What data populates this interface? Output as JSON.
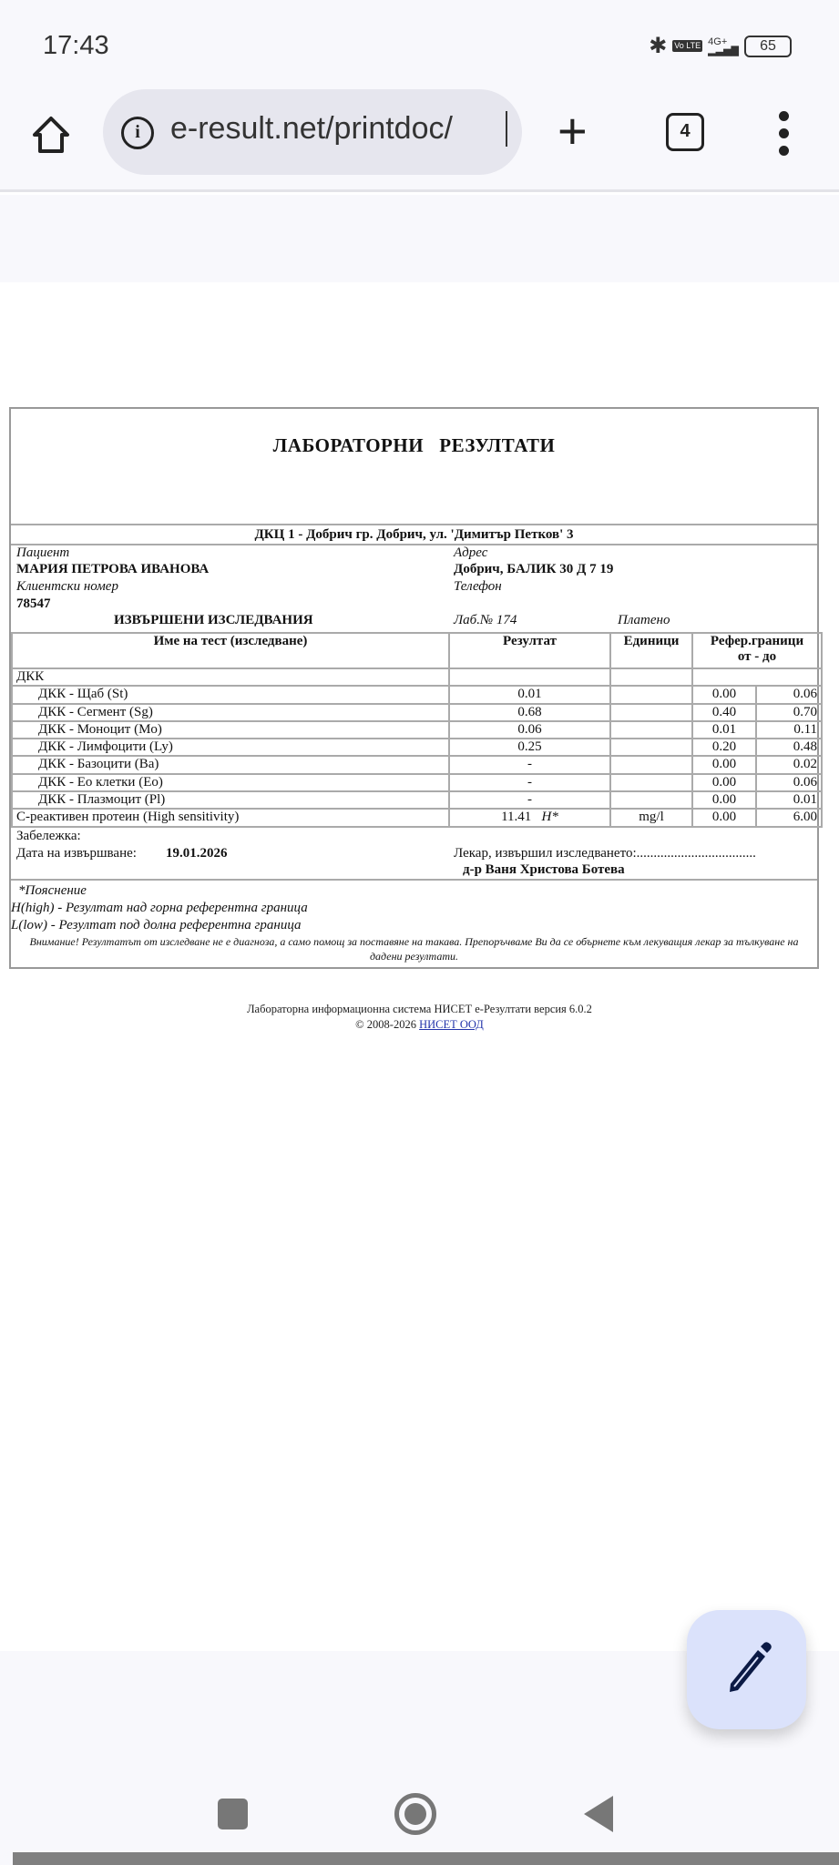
{
  "status_bar": {
    "time": "17:43",
    "network": "4G+",
    "volte": "Vo LTE",
    "battery": "65",
    "icons": [
      "bluetooth-icon",
      "volte-icon",
      "signal-icon",
      "battery-icon"
    ]
  },
  "browser": {
    "url": "e-result.net/printdoc/",
    "tab_count": "4",
    "icons": [
      "home-icon",
      "info-icon",
      "plus-icon",
      "tabs-icon",
      "menu-icon"
    ]
  },
  "document": {
    "title": "ЛАБОРАТОРНИ   РЕЗУЛТАТИ",
    "clinic": "ДКЦ 1 - Добрич гр. Добрич, ул. 'Димитър Петков' 3",
    "patient_label": "Пациент",
    "patient_name": "МАРИЯ ПЕТРОВА ИВАНОВА",
    "address_label": "Адрес",
    "address": "Добрич, БАЛИК 30 Д 7 19",
    "client_no_label": "Клиентски номер",
    "client_no": "78547",
    "phone_label": "Телефон",
    "tests_heading": "ИЗВЪРШЕНИ ИЗСЛЕДВАНИЯ",
    "lab_no": "Лаб.№ 174",
    "paid": "Платено",
    "columns": {
      "name": "Име на тест (изследване)",
      "result": "Резултат",
      "units": "Единици",
      "ref": "Рефер.граници",
      "ref_sub": "от - до"
    },
    "group": "ДКК",
    "rows": [
      {
        "name": "ДКК - Щаб (St)",
        "result": "0.01",
        "flag": "",
        "units": "",
        "from": "0.00",
        "to": "0.06"
      },
      {
        "name": "ДКК - Сегмент (Sg)",
        "result": "0.68",
        "flag": "",
        "units": "",
        "from": "0.40",
        "to": "0.70"
      },
      {
        "name": "ДКК - Моноцит (Mo)",
        "result": "0.06",
        "flag": "",
        "units": "",
        "from": "0.01",
        "to": "0.11"
      },
      {
        "name": "ДКК - Лимфоцити (Ly)",
        "result": "0.25",
        "flag": "",
        "units": "",
        "from": "0.20",
        "to": "0.48"
      },
      {
        "name": "ДКК - Базоцити (Ba)",
        "result": "-",
        "flag": "",
        "units": "",
        "from": "0.00",
        "to": "0.02"
      },
      {
        "name": "ДКК - Ео клетки (Eo)",
        "result": "-",
        "flag": "",
        "units": "",
        "from": "0.00",
        "to": "0.06"
      },
      {
        "name": "ДКК - Плазмоцит (Pl)",
        "result": "-",
        "flag": "",
        "units": "",
        "from": "0.00",
        "to": "0.01"
      }
    ],
    "crp": {
      "name": "C-реактивен протеин (High sensitivity)",
      "result": "11.41",
      "flag": "H*",
      "units": "mg/l",
      "from": "0.00",
      "to": "6.00"
    },
    "remark_label": "Забележка:",
    "date_label": "Дата на извършване:",
    "date": "19.01.2026",
    "doctor_label": "Лекар, извършил изследването:...................................",
    "doctor": "д-р Ваня Христова Ботева",
    "explanation_title": "*Пояснение",
    "high": "H(high) - Резултат над горна референтна граница",
    "low": "L(low) - Резултат под долна референтна граница",
    "warning": "Внимание! Резултатът от изследване не е диагноза, а само помощ за поставяне на такава. Препоръчваме Ви да се обърнете към лекуващия лекар за тълкуване на дадени резултати."
  },
  "footer": {
    "line1": "Лабораторна информационна система НИСЕТ е-Резултати версия 6.0.2",
    "copyright": "© 2008-2026",
    "link": "НИСЕТ ООД"
  },
  "fab": {
    "icon": "pencil-icon"
  },
  "nav": {
    "icons": [
      "recents-icon",
      "home-icon",
      "back-icon"
    ]
  }
}
